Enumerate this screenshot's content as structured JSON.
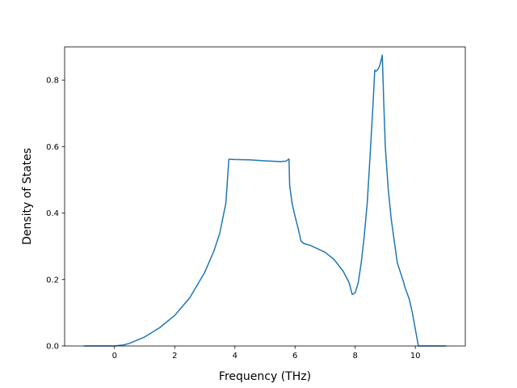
{
  "chart_data": {
    "type": "line",
    "title": "",
    "xlabel": "Frequency (THz)",
    "ylabel": "Density of States",
    "xlim": [
      -1.66,
      11.66
    ],
    "ylim": [
      0.0,
      0.9
    ],
    "grid": false,
    "legend": "none",
    "xticks": [
      0,
      2,
      4,
      6,
      8,
      10
    ],
    "xtick_labels": [
      "0",
      "2",
      "4",
      "6",
      "8",
      "10"
    ],
    "yticks": [
      0.0,
      0.2,
      0.4,
      0.6,
      0.8
    ],
    "ytick_labels": [
      "0.0",
      "0.2",
      "0.4",
      "0.6",
      "0.8"
    ],
    "line_color": "#1f77b4",
    "series": [
      {
        "x": [
          -1.0,
          -0.5,
          0.0,
          0.3,
          0.5,
          1.0,
          1.5,
          2.0,
          2.5,
          3.0,
          3.3,
          3.5,
          3.7,
          3.8,
          4.0,
          4.5,
          5.0,
          5.5,
          5.7,
          5.8,
          5.82,
          5.9,
          6.0,
          6.1,
          6.2,
          6.3,
          6.5,
          7.0,
          7.3,
          7.6,
          7.8,
          7.9,
          8.0,
          8.1,
          8.2,
          8.3,
          8.4,
          8.5,
          8.6,
          8.65,
          8.7,
          8.75,
          8.8,
          8.85,
          8.9,
          8.95,
          9.0,
          9.1,
          9.2,
          9.4,
          9.6,
          9.65,
          9.8,
          9.9,
          10.0,
          10.1,
          10.5,
          11.0
        ],
        "y": [
          0.0,
          0.0,
          0.0,
          0.003,
          0.008,
          0.027,
          0.055,
          0.092,
          0.145,
          0.222,
          0.285,
          0.34,
          0.43,
          0.562,
          0.561,
          0.56,
          0.557,
          0.555,
          0.556,
          0.563,
          0.485,
          0.43,
          0.39,
          0.355,
          0.315,
          0.308,
          0.303,
          0.282,
          0.26,
          0.225,
          0.19,
          0.155,
          0.16,
          0.19,
          0.25,
          0.33,
          0.43,
          0.58,
          0.74,
          0.83,
          0.827,
          0.832,
          0.84,
          0.855,
          0.875,
          0.73,
          0.6,
          0.47,
          0.38,
          0.25,
          0.195,
          0.178,
          0.14,
          0.1,
          0.05,
          0.0,
          0.0,
          0.0
        ]
      }
    ]
  }
}
